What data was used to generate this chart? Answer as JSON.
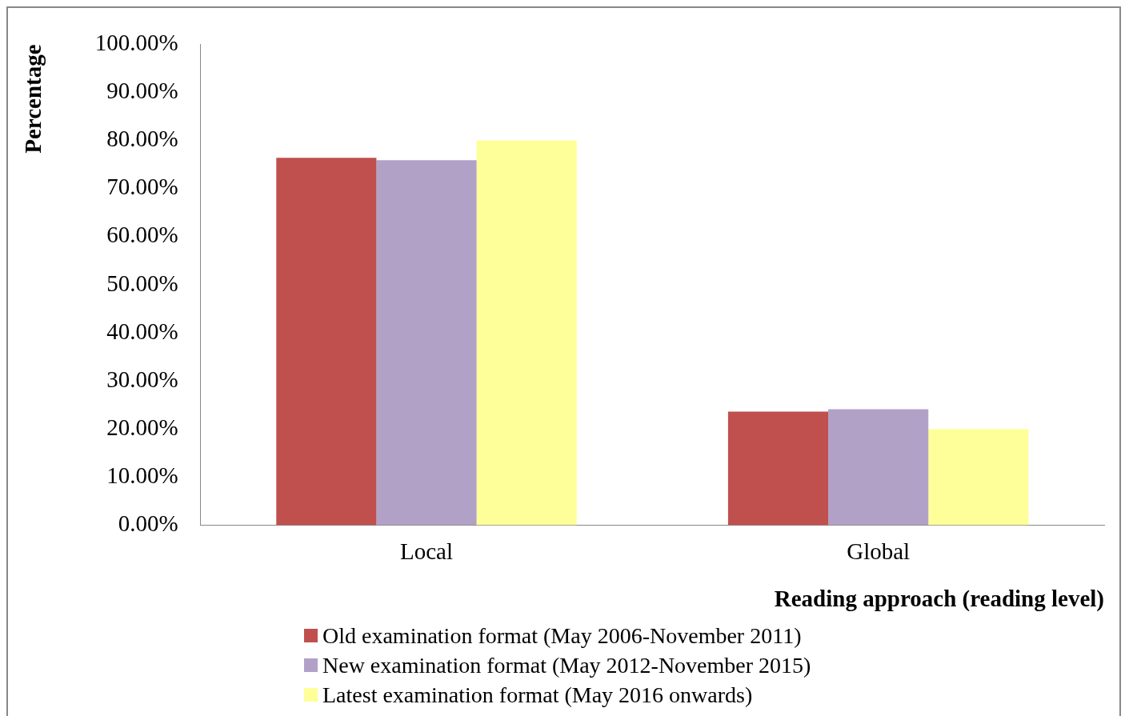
{
  "chart_data": {
    "type": "bar",
    "xlabel": "Reading approach (reading level)",
    "ylabel": "Percentage",
    "categories": [
      "Local",
      "Global"
    ],
    "series": [
      {
        "name": "Old examination format (May 2006-November 2011)",
        "color": "#c0504d",
        "values": [
          76.4,
          23.6
        ]
      },
      {
        "name": "New examination format (May 2012-November 2015)",
        "color": "#b2a1c7",
        "values": [
          75.9,
          24.1
        ]
      },
      {
        "name": "Latest examination format (May 2016 onwards)",
        "color": "#ffff99",
        "values": [
          80.0,
          20.0
        ]
      }
    ],
    "ylim": [
      0,
      100
    ],
    "yticks": [
      {
        "value": 0,
        "label": "0.00%"
      },
      {
        "value": 10,
        "label": "10.00%"
      },
      {
        "value": 20,
        "label": "20.00%"
      },
      {
        "value": 30,
        "label": "30.00%"
      },
      {
        "value": 40,
        "label": "40.00%"
      },
      {
        "value": 50,
        "label": "50.00%"
      },
      {
        "value": 60,
        "label": "60.00%"
      },
      {
        "value": 70,
        "label": "70.00%"
      },
      {
        "value": 80,
        "label": "80.00%"
      },
      {
        "value": 90,
        "label": "90.00%"
      },
      {
        "value": 100,
        "label": "100.00%"
      }
    ],
    "grid": false,
    "legend": "bottom"
  }
}
